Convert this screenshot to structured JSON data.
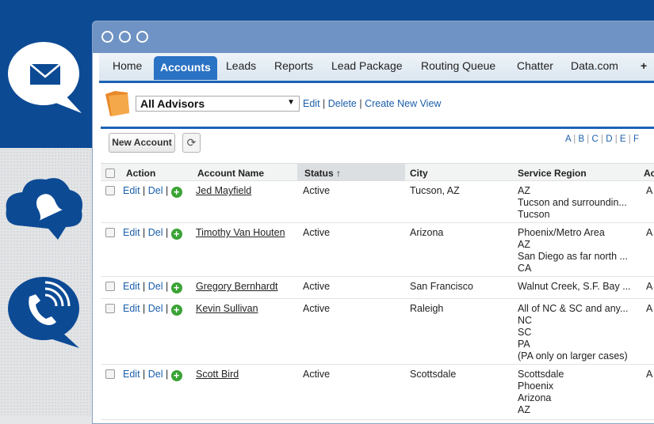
{
  "nav": {
    "tabs": [
      "Home",
      "Accounts",
      "Leads",
      "Reports",
      "Lead Package",
      "Routing Queue",
      "Chatter",
      "Data.com",
      "+"
    ],
    "active": "Accounts"
  },
  "view": {
    "selected": "All Advisors",
    "edit": "Edit",
    "delete": "Delete",
    "create": "Create New View"
  },
  "toolbar": {
    "new_account": "New Account",
    "alpha": [
      "A",
      "B",
      "C",
      "D",
      "E",
      "F"
    ]
  },
  "table": {
    "headers": [
      "Action",
      "Account Name",
      "Status ↑",
      "City",
      "Service Region",
      "Ac"
    ],
    "action": {
      "edit": "Edit",
      "del": "Del",
      "plus": "+"
    },
    "rows": [
      {
        "name": "Jed Mayfield",
        "status": "Active",
        "city": "Tucson, AZ",
        "region": [
          "AZ",
          "Tucson and surroundin...",
          "Tucson"
        ],
        "extra": "A"
      },
      {
        "name": "Timothy Van Houten",
        "status": "Active",
        "city": "Arizona",
        "region": [
          "Phoenix/Metro Area",
          "AZ",
          "San Diego as far north ...",
          "CA"
        ],
        "extra": "A"
      },
      {
        "name": "Gregory Bernhardt",
        "status": "Active",
        "city": "San Francisco",
        "region": [
          "Walnut Creek, S.F. Bay ..."
        ],
        "extra": "A"
      },
      {
        "name": "Kevin Sullivan",
        "status": "Active",
        "city": "Raleigh",
        "region": [
          "All of NC & SC and any...",
          "NC",
          "SC",
          "PA",
          "(PA only on larger cases)"
        ],
        "extra": "A"
      },
      {
        "name": "Scott Bird",
        "status": "Active",
        "city": "Scottsdale",
        "region": [
          "Scottsdale",
          "Phoenix",
          "Arizona",
          "AZ"
        ],
        "extra": "A"
      }
    ]
  },
  "colors": {
    "brand_blue": "#0c4a94",
    "tab_active": "#2a72c4",
    "link": "#1b5faa",
    "add_green": "#3aa335"
  }
}
